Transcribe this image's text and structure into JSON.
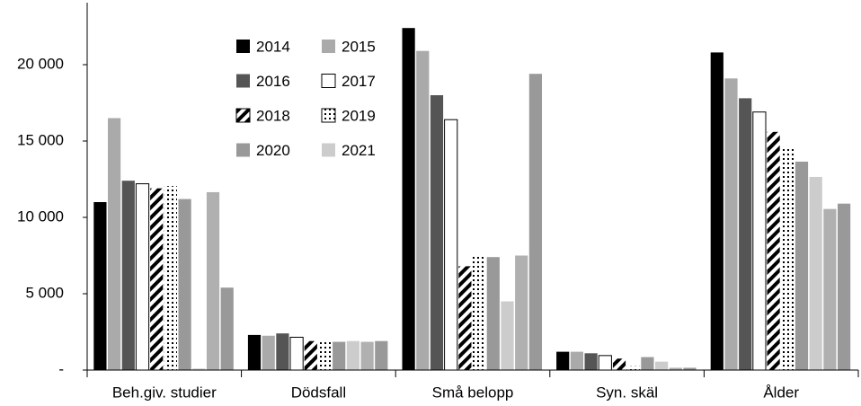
{
  "chart_data": {
    "type": "bar",
    "categories": [
      "Beh.giv. studier",
      "Dödsfall",
      "Små belopp",
      "Syn. skäl",
      "Ålder"
    ],
    "series": [
      {
        "name": "2014",
        "color": "#000000",
        "values": [
          11000,
          2300,
          22400,
          1200,
          20800
        ]
      },
      {
        "name": "2015",
        "color": "#aaaaaa",
        "values": [
          16500,
          2250,
          20900,
          1200,
          19100
        ]
      },
      {
        "name": "2016",
        "color": "#555555",
        "values": [
          12400,
          2400,
          18000,
          1100,
          17800
        ]
      },
      {
        "name": "2017",
        "color": "#ffffff",
        "values": [
          12200,
          2150,
          16400,
          950,
          16900
        ]
      },
      {
        "name": "2018",
        "color": "#000000",
        "pattern": "hatch",
        "values": [
          11900,
          1900,
          6800,
          750,
          15600
        ]
      },
      {
        "name": "2019",
        "color": "#000000",
        "pattern": "dots",
        "values": [
          12050,
          1850,
          7500,
          250,
          14500
        ]
      },
      {
        "name": "2020",
        "color": "#999999",
        "values": [
          11200,
          1850,
          7400,
          850,
          13650
        ]
      },
      {
        "name": "2021",
        "color": "#cccccc",
        "values": [
          100,
          1900,
          4500,
          550,
          12650
        ]
      },
      {
        "color": "#b0b0b0",
        "values": [
          11650,
          1850,
          7500,
          150,
          10550
        ]
      },
      {
        "color": "#999999",
        "values": [
          5400,
          1900,
          19400,
          150,
          10900
        ]
      }
    ],
    "ylim": [
      0,
      24000
    ],
    "yticks": [
      {
        "value": 0,
        "label": "-"
      },
      {
        "value": 5000,
        "label": "5 000"
      },
      {
        "value": 10000,
        "label": "10 000"
      },
      {
        "value": 15000,
        "label": "15 000"
      },
      {
        "value": 20000,
        "label": "20 000"
      }
    ]
  }
}
